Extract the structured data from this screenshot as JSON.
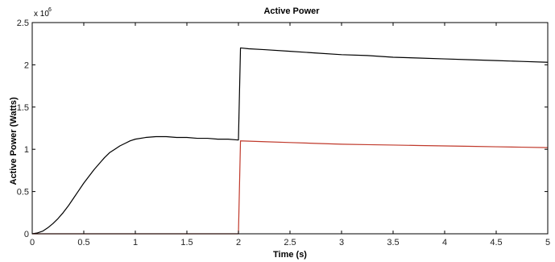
{
  "chart_data": {
    "type": "line",
    "title": "Active Power",
    "xlabel": "Time (s)",
    "ylabel": "Active Power (Watts)",
    "y_exponent_base": "x 10",
    "y_exponent_power": "6",
    "xlim": [
      0,
      5
    ],
    "ylim": [
      0,
      2.5
    ],
    "x_ticks": [
      "0",
      "0.5",
      "1",
      "1.5",
      "2",
      "2.5",
      "3",
      "3.5",
      "4",
      "4.5",
      "5"
    ],
    "y_ticks": [
      "0",
      "0.5",
      "1",
      "1.5",
      "2",
      "2.5"
    ],
    "grid": false,
    "series": [
      {
        "color": "#000000",
        "points": [
          [
            0,
            0
          ],
          [
            0.05,
            0.01
          ],
          [
            0.1,
            0.03
          ],
          [
            0.15,
            0.07
          ],
          [
            0.2,
            0.12
          ],
          [
            0.25,
            0.18
          ],
          [
            0.3,
            0.25
          ],
          [
            0.35,
            0.33
          ],
          [
            0.4,
            0.42
          ],
          [
            0.45,
            0.51
          ],
          [
            0.5,
            0.6
          ],
          [
            0.55,
            0.68
          ],
          [
            0.6,
            0.76
          ],
          [
            0.65,
            0.83
          ],
          [
            0.7,
            0.9
          ],
          [
            0.75,
            0.96
          ],
          [
            0.8,
            1.0
          ],
          [
            0.85,
            1.04
          ],
          [
            0.9,
            1.07
          ],
          [
            0.95,
            1.1
          ],
          [
            1.0,
            1.12
          ],
          [
            1.1,
            1.14
          ],
          [
            1.2,
            1.15
          ],
          [
            1.3,
            1.15
          ],
          [
            1.4,
            1.14
          ],
          [
            1.5,
            1.14
          ],
          [
            1.6,
            1.13
          ],
          [
            1.7,
            1.13
          ],
          [
            1.8,
            1.12
          ],
          [
            1.9,
            1.12
          ],
          [
            2.0,
            1.11
          ],
          [
            2.02,
            2.2
          ],
          [
            2.1,
            2.19
          ],
          [
            2.25,
            2.18
          ],
          [
            2.5,
            2.16
          ],
          [
            2.75,
            2.14
          ],
          [
            3.0,
            2.12
          ],
          [
            3.25,
            2.11
          ],
          [
            3.5,
            2.09
          ],
          [
            3.75,
            2.08
          ],
          [
            4.0,
            2.07
          ],
          [
            4.25,
            2.06
          ],
          [
            4.5,
            2.05
          ],
          [
            4.75,
            2.04
          ],
          [
            5.0,
            2.03
          ]
        ]
      },
      {
        "color": "#c0392b",
        "points": [
          [
            0,
            0
          ],
          [
            2.0,
            0
          ],
          [
            2.02,
            1.1
          ],
          [
            2.25,
            1.09
          ],
          [
            2.5,
            1.08
          ],
          [
            2.75,
            1.07
          ],
          [
            3.0,
            1.06
          ],
          [
            3.25,
            1.055
          ],
          [
            3.5,
            1.05
          ],
          [
            3.75,
            1.045
          ],
          [
            4.0,
            1.04
          ],
          [
            4.25,
            1.035
          ],
          [
            4.5,
            1.03
          ],
          [
            4.75,
            1.025
          ],
          [
            5.0,
            1.02
          ]
        ]
      }
    ]
  }
}
